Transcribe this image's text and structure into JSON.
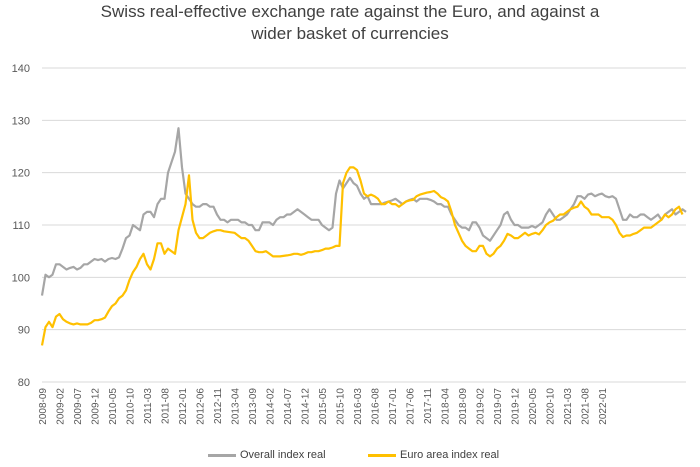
{
  "chart_data": {
    "type": "line",
    "title_line1": "Swiss real-effective exchange rate against the Euro, and against a",
    "title_line2": "wider basket of currencies",
    "ylim": [
      80,
      140
    ],
    "yticks": [
      "80",
      "90",
      "100",
      "110",
      "120",
      "130",
      "140"
    ],
    "xticks": [
      "2008-09",
      "2009-02",
      "2009-07",
      "2009-12",
      "2010-05",
      "2010-10",
      "2011-03",
      "2011-08",
      "2012-01",
      "2012-06",
      "2012-11",
      "2013-04",
      "2013-09",
      "2014-02",
      "2014-07",
      "2014-12",
      "2015-05",
      "2015-10",
      "2016-03",
      "2016-08",
      "2017-01",
      "2017-06",
      "2017-11",
      "2018-04",
      "2018-09",
      "2019-02",
      "2019-07",
      "2019-12",
      "2020-05",
      "2020-10",
      "2021-03",
      "2021-08",
      "2022-01"
    ],
    "series": [
      {
        "name": "Overall index real",
        "color": "#a6a6a6",
        "values": [
          96.5,
          100.5,
          100,
          100.5,
          102.5,
          102.5,
          102,
          101.5,
          101.8,
          102,
          101.5,
          101.8,
          102.5,
          102.5,
          103,
          103.5,
          103.3,
          103.5,
          103,
          103.5,
          103.7,
          103.5,
          103.8,
          105.5,
          107.5,
          108,
          110,
          109.5,
          109,
          112,
          112.5,
          112.5,
          111.5,
          114,
          115,
          115,
          120,
          122,
          124,
          128.5,
          121,
          116,
          115,
          114,
          113.5,
          113.5,
          114,
          114,
          113.5,
          113.5,
          112,
          111,
          111,
          110.5,
          111,
          111,
          111,
          110.5,
          110.5,
          110,
          110,
          109,
          109,
          110.5,
          110.5,
          110.5,
          110,
          111,
          111.5,
          111.5,
          112,
          112,
          112.5,
          113,
          112.5,
          112,
          111.5,
          111,
          111,
          111,
          110,
          109.5,
          109,
          109.5,
          116,
          118.5,
          117,
          118,
          119,
          118,
          117.5,
          116,
          115,
          115.5,
          114,
          114,
          114,
          114,
          114.3,
          114.5,
          114.7,
          115,
          114.5,
          114,
          114.5,
          114.8,
          115,
          114.5,
          115,
          115,
          115,
          114.8,
          114.5,
          114,
          114,
          113.5,
          113.5,
          112,
          111,
          110,
          109.5,
          109.5,
          109,
          110.5,
          110.5,
          109.5,
          108,
          107.5,
          107,
          108,
          109,
          110,
          112,
          112.5,
          111,
          110,
          110,
          109.5,
          109.5,
          109.5,
          109.8,
          109.5,
          110,
          110.5,
          112,
          113,
          112,
          111,
          111,
          111.5,
          112,
          113,
          114,
          115.5,
          115.5,
          115,
          115.8,
          116,
          115.5,
          115.8,
          116,
          115.5,
          115.3,
          115.5,
          115,
          113,
          111,
          111,
          112,
          111.5,
          111.5,
          112,
          112,
          111.5,
          111,
          111.5,
          112,
          111,
          112,
          112.5,
          113,
          112,
          112.5,
          113,
          112.5
        ]
      },
      {
        "name": "Euro area index real",
        "color": "#ffc000",
        "values": [
          87,
          90.5,
          91.5,
          90.5,
          92.5,
          93,
          92,
          91.5,
          91.2,
          91,
          91.2,
          91,
          91,
          91,
          91.3,
          91.8,
          91.8,
          92,
          92.3,
          93.5,
          94.5,
          95,
          96,
          96.5,
          97.5,
          99.5,
          101,
          102,
          103.5,
          104.5,
          102.5,
          101.5,
          103.5,
          106.5,
          106.5,
          104.5,
          105.5,
          105,
          104.5,
          109,
          111.5,
          114,
          119.5,
          111,
          108.5,
          107.5,
          107.5,
          108,
          108.5,
          108.8,
          109,
          109,
          108.8,
          108.7,
          108.6,
          108.5,
          108,
          107.5,
          107.5,
          107,
          106,
          105,
          104.8,
          104.8,
          105,
          104.5,
          104,
          104,
          104,
          104.1,
          104.2,
          104.3,
          104.5,
          104.5,
          104.3,
          104.5,
          104.8,
          104.8,
          105,
          105,
          105.2,
          105.5,
          105.5,
          105.7,
          106,
          106,
          118,
          120,
          121,
          121,
          120.5,
          118.5,
          116,
          115.5,
          115.8,
          115.5,
          115,
          114,
          114,
          114.5,
          114,
          114,
          113.5,
          114,
          114.5,
          114.7,
          114.8,
          115.5,
          115.8,
          116,
          116.2,
          116.3,
          116.5,
          116,
          115.3,
          115,
          114.5,
          112.5,
          110,
          108.5,
          107,
          106,
          105.5,
          105,
          105,
          106,
          106,
          104.5,
          104,
          104.5,
          105.5,
          106,
          107,
          108.3,
          108,
          107.5,
          107.5,
          108,
          108.5,
          108,
          108.3,
          108.5,
          108.2,
          109,
          110,
          110.5,
          110.8,
          111.5,
          112,
          112,
          112.5,
          113,
          113.3,
          113.5,
          114.5,
          113.5,
          113,
          112,
          112,
          112,
          111.5,
          111.5,
          111.5,
          111,
          110,
          108.5,
          107.7,
          108,
          108,
          108.3,
          108.5,
          109,
          109.5,
          109.5,
          109.5,
          110,
          110.5,
          111,
          112,
          111.5,
          112,
          113,
          113.5,
          112
        ]
      }
    ]
  },
  "legend": {
    "overall_label": "Overall index real",
    "euro_label": "Euro area index real",
    "overall_color": "#a6a6a6",
    "euro_color": "#ffc000"
  }
}
